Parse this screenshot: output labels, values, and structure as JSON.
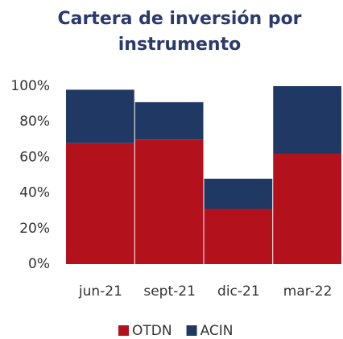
{
  "chart_data": {
    "type": "stacked_bar",
    "title": "Cartera de inversión por instrumento",
    "categories": [
      "jun-21",
      "sept-21",
      "dic-21",
      "mar-22"
    ],
    "series": [
      {
        "name": "OTDN",
        "color": "#b3121c",
        "values": [
          68,
          70,
          31,
          62
        ]
      },
      {
        "name": "ACIN",
        "color": "#203864",
        "values": [
          30,
          21,
          17,
          38
        ]
      }
    ],
    "ylim": [
      0,
      100
    ],
    "yticks": [
      {
        "value": 0,
        "label": "0%"
      },
      {
        "value": 20,
        "label": "20%"
      },
      {
        "value": 40,
        "label": "40%"
      },
      {
        "value": 60,
        "label": "60%"
      },
      {
        "value": 80,
        "label": "80%"
      },
      {
        "value": 100,
        "label": "100%"
      }
    ],
    "legend": "bottom"
  }
}
